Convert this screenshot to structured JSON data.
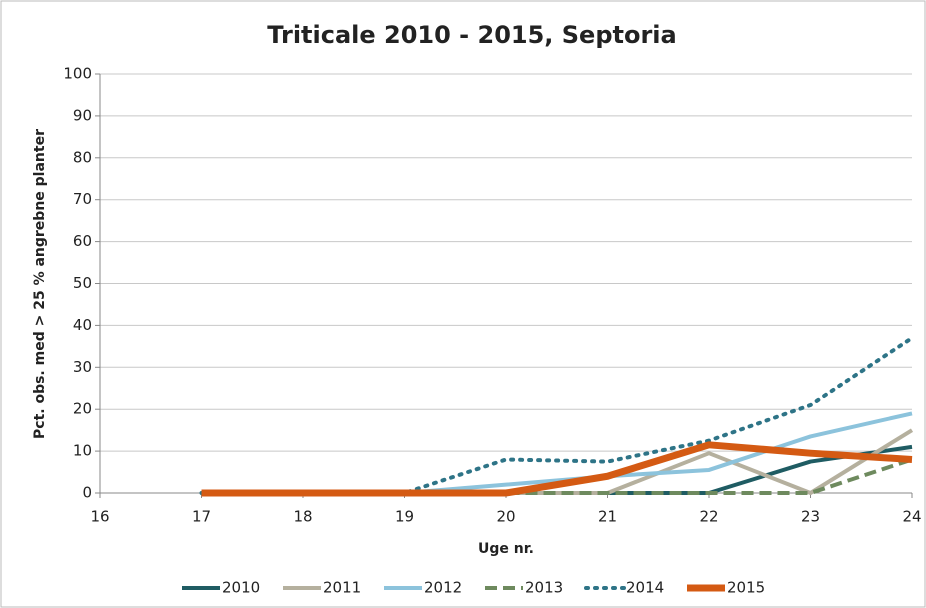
{
  "chart_data": {
    "type": "line",
    "title": "Triticale 2010 - 2015, Septoria",
    "x_label": "Uge nr.",
    "y_label": "Pct. obs. med > 25 % angrebne planter",
    "x": [
      17,
      18,
      19,
      20,
      21,
      22,
      23,
      24
    ],
    "series": [
      {
        "name": "2010",
        "color": "#1f5c63",
        "style": "solid",
        "values": [
          0,
          0,
          0,
          0,
          0,
          0,
          7.5,
          11
        ]
      },
      {
        "name": "2011",
        "color": "#b5b09e",
        "style": "solid",
        "values": [
          0,
          0,
          0,
          0,
          0,
          9.5,
          0,
          15
        ]
      },
      {
        "name": "2012",
        "color": "#8cc3dc",
        "style": "solid",
        "values": [
          0,
          0,
          0,
          2,
          4,
          5.5,
          13.5,
          19
        ]
      },
      {
        "name": "2013",
        "color": "#6e8a5e",
        "style": "dashed",
        "values": [
          0,
          0,
          0,
          0,
          0,
          0,
          0,
          8
        ]
      },
      {
        "name": "2014",
        "color": "#2e7487",
        "style": "dotted",
        "values": [
          0,
          0,
          0,
          8,
          7.5,
          12.5,
          21,
          37
        ]
      },
      {
        "name": "2015",
        "color": "#d45a13",
        "style": "solid",
        "values": [
          0,
          0,
          0,
          0,
          4,
          11.5,
          9.5,
          8
        ]
      }
    ],
    "xlim": [
      16,
      24
    ],
    "xticks": [
      16,
      17,
      18,
      19,
      20,
      21,
      22,
      23,
      24
    ],
    "ylim": [
      0,
      100
    ],
    "yticks": [
      0,
      10,
      20,
      30,
      40,
      50,
      60,
      70,
      80,
      90,
      100
    ],
    "grid": true,
    "legend": "bottom"
  }
}
